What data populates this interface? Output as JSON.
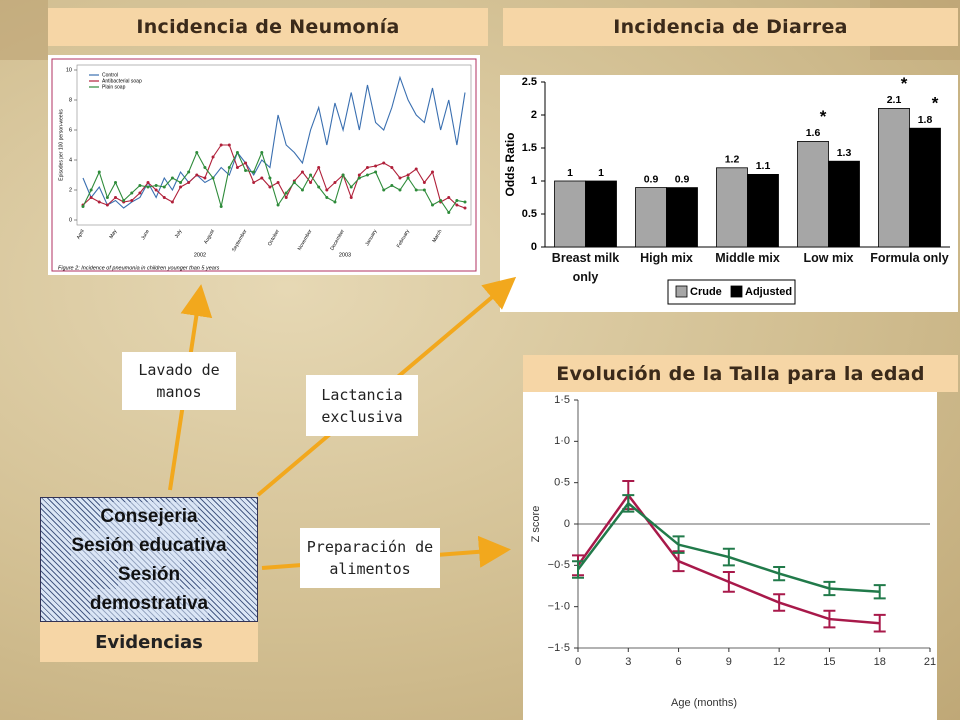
{
  "flow": {
    "boxes": [
      "Lavado de manos",
      "Lactancia exclusiva",
      "Preparación de alimentos"
    ],
    "center_lines": [
      "Consejeria",
      "Sesión educativa",
      "Sesión",
      "demostrativa"
    ],
    "label": "Evidencias"
  },
  "chart_data": [
    {
      "type": "line",
      "title": "Incidencia de Neumonía",
      "ylabel": "Episodes per 100 person-weeks",
      "caption": "Figure 2: Incidence of pneumonia in children younger than 5 years",
      "year_labels": [
        "2002",
        "2003"
      ],
      "categories": [
        "April",
        null,
        null,
        null,
        "May",
        null,
        null,
        null,
        "June",
        null,
        null,
        null,
        "July",
        null,
        null,
        null,
        "August",
        null,
        null,
        null,
        "September",
        null,
        null,
        null,
        "October",
        null,
        null,
        null,
        "November",
        null,
        null,
        null,
        "December",
        null,
        null,
        null,
        "January",
        null,
        null,
        null,
        "February",
        null,
        null,
        null,
        "March",
        null,
        null,
        null
      ],
      "ylim": [
        0,
        10
      ],
      "yticks": [
        0,
        2,
        4,
        6,
        8,
        10
      ],
      "series": [
        {
          "name": "Control",
          "color": "#3a6fb0",
          "values": [
            2.8,
            1.5,
            2.2,
            1.0,
            1.3,
            0.8,
            1.2,
            1.5,
            2.5,
            1.5,
            2.8,
            2.0,
            3.2,
            2.5,
            3.0,
            2.5,
            2.8,
            3.5,
            3.0,
            4.5,
            3.8,
            3.0,
            4.0,
            3.5,
            7.0,
            5.0,
            4.5,
            3.8,
            6.0,
            7.5,
            5.0,
            7.8,
            6.0,
            8.5,
            6.0,
            9.0,
            6.5,
            6.0,
            7.5,
            9.5,
            8.0,
            7.0,
            6.5,
            8.8,
            6.0,
            8.0,
            5.0,
            8.5
          ]
        },
        {
          "name": "Antibacterial soap",
          "color": "#b0203a",
          "values": [
            1.0,
            1.5,
            1.2,
            1.0,
            1.5,
            1.2,
            1.3,
            1.8,
            2.5,
            2.0,
            1.5,
            1.2,
            2.2,
            2.5,
            3.0,
            2.8,
            4.2,
            5.0,
            5.0,
            3.5,
            3.8,
            2.5,
            2.8,
            2.2,
            2.5,
            1.5,
            2.6,
            3.2,
            2.5,
            3.5,
            2.0,
            2.5,
            3.0,
            1.5,
            3.0,
            3.5,
            3.6,
            3.8,
            3.5,
            2.8,
            3.0,
            3.4,
            2.5,
            3.2,
            1.2,
            1.5,
            1.0,
            0.8
          ]
        },
        {
          "name": "Plain soap",
          "color": "#2e8b3a",
          "values": [
            0.9,
            2.0,
            3.2,
            1.5,
            2.5,
            1.3,
            1.8,
            2.3,
            2.2,
            2.3,
            2.2,
            2.8,
            2.5,
            3.2,
            4.5,
            3.5,
            2.8,
            0.9,
            3.5,
            4.5,
            3.3,
            3.2,
            4.5,
            2.8,
            1.0,
            1.8,
            2.5,
            2.0,
            3.0,
            2.2,
            1.5,
            1.2,
            3.0,
            2.2,
            2.8,
            3.0,
            3.2,
            2.0,
            2.3,
            2.0,
            2.8,
            2.0,
            2.0,
            1.0,
            1.3,
            0.5,
            1.3,
            1.2
          ]
        }
      ]
    },
    {
      "type": "bar",
      "title": "Incidencia de Diarrea",
      "ylabel": "Odds Ratio",
      "categories": [
        "Breast milk only",
        "High mix",
        "Middle mix",
        "Low mix",
        "Formula only"
      ],
      "ylim": [
        0,
        2.5
      ],
      "yticks": [
        0,
        0.5,
        1,
        1.5,
        2,
        2.5
      ],
      "series": [
        {
          "name": "Crude",
          "color": "#a6a6a6",
          "values": [
            1,
            0.9,
            1.2,
            1.6,
            2.1
          ],
          "flags": [
            null,
            null,
            null,
            "*",
            "*"
          ]
        },
        {
          "name": "Adjusted",
          "color": "#000000",
          "values": [
            1,
            0.9,
            1.1,
            1.3,
            1.8
          ],
          "flags": [
            null,
            null,
            null,
            null,
            "*"
          ]
        }
      ]
    },
    {
      "type": "errorline",
      "title": "Evolución de la Talla para la edad",
      "xlabel": "Age (months)",
      "ylabel": "Z score",
      "x": [
        0,
        3,
        6,
        9,
        12,
        15,
        18
      ],
      "xlim": [
        0,
        21
      ],
      "xticks": [
        0,
        3,
        6,
        9,
        12,
        15,
        18,
        21
      ],
      "ylim": [
        -1.5,
        1.5
      ],
      "yticks": [
        {
          "value": -1.5,
          "label": "−1·5"
        },
        {
          "value": -1,
          "label": "−1·0"
        },
        {
          "value": -0.5,
          "label": "−0·5"
        },
        0,
        {
          "value": 0.5,
          "label": "0·5"
        },
        {
          "value": 1,
          "label": "1·0"
        },
        {
          "value": 1.5,
          "label": "1·5"
        }
      ],
      "series": [
        {
          "color": "#a8194a",
          "values": [
            -0.5,
            0.35,
            -0.45,
            -0.7,
            -0.95,
            -1.15,
            -1.2
          ],
          "errors": [
            0.12,
            0.17,
            0.12,
            0.12,
            0.1,
            0.1,
            0.1
          ]
        },
        {
          "color": "#217a4a",
          "values": [
            -0.55,
            0.25,
            -0.25,
            -0.4,
            -0.6,
            -0.78,
            -0.82
          ],
          "errors": [
            0.1,
            0.1,
            0.1,
            0.1,
            0.08,
            0.08,
            0.08
          ]
        }
      ]
    }
  ]
}
